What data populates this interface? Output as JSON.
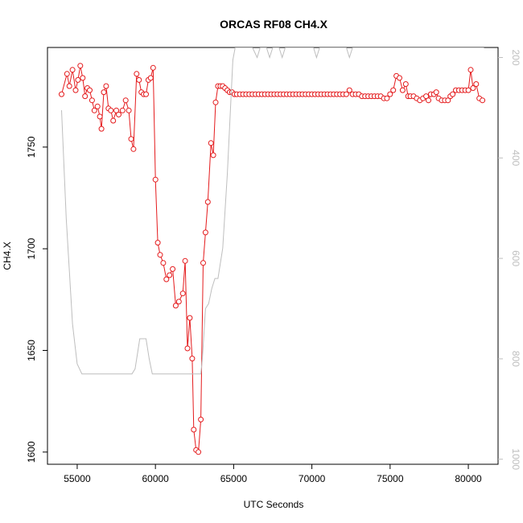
{
  "chart_data": {
    "type": "line",
    "title": "ORCAS RF08 CH4.X",
    "xlabel": "UTC Seconds",
    "ylabel": "CH4.X",
    "xlim": [
      53100,
      81900
    ],
    "ylim": [
      1594,
      1799
    ],
    "y2lim": [
      1010,
      180
    ],
    "x_ticks": [
      55000,
      60000,
      65000,
      70000,
      75000,
      80000
    ],
    "x_tick_labels": [
      "55000",
      "60000",
      "65000",
      "70000",
      "75000",
      "80000"
    ],
    "y_ticks": [
      1600,
      1650,
      1700,
      1750
    ],
    "y_tick_labels": [
      "1600",
      "1650",
      "1700",
      "1750"
    ],
    "y2_ticks": [
      200,
      400,
      600,
      800,
      1000
    ],
    "y2_tick_labels": [
      "200",
      "400",
      "600",
      "800",
      "1000"
    ],
    "grid": false,
    "colors": {
      "primary": "#e41a1c",
      "secondary": "#bebebe",
      "axis": "#000000"
    },
    "series": [
      {
        "role": "primary",
        "style": "line-with-circle-markers",
        "x": [
          54000,
          54350,
          54500,
          54700,
          54900,
          55050,
          55200,
          55350,
          55500,
          55650,
          55800,
          55950,
          56100,
          56300,
          56450,
          56550,
          56700,
          56850,
          57000,
          57150,
          57300,
          57500,
          57650,
          57900,
          58100,
          58300,
          58450,
          58600,
          58800,
          58950,
          59100,
          59250,
          59400,
          59550,
          59700,
          59850,
          60000,
          60150,
          60300,
          60500,
          60700,
          60900,
          61100,
          61300,
          61500,
          61750,
          61900,
          62050,
          62200,
          62350,
          62450,
          62600,
          62750,
          62900,
          63050,
          63200,
          63350,
          63550,
          63700,
          63850,
          64000,
          64150,
          64300,
          64450,
          64600,
          64750,
          64900,
          65050,
          65200,
          65400,
          65600,
          65800,
          66000,
          66200,
          66400,
          66600,
          66800,
          67000,
          67200,
          67400,
          67600,
          67800,
          68000,
          68200,
          68400,
          68600,
          68800,
          69000,
          69200,
          69400,
          69600,
          69800,
          70000,
          70200,
          70400,
          70600,
          70800,
          71000,
          71200,
          71400,
          71600,
          71800,
          72000,
          72200,
          72400,
          72600,
          72800,
          73000,
          73200,
          73400,
          73600,
          73800,
          74000,
          74200,
          74400,
          74600,
          74800,
          75000,
          75200,
          75400,
          75600,
          75800,
          76000,
          76150,
          76300,
          76500,
          76700,
          76900,
          77100,
          77300,
          77450,
          77600,
          77800,
          77950,
          78100,
          78300,
          78500,
          78700,
          78850,
          79000,
          79200,
          79400,
          79600,
          79800,
          80000,
          80150,
          80300,
          80500,
          80700,
          80900
        ],
        "y": [
          1776,
          1786,
          1780,
          1788,
          1778,
          1783,
          1790,
          1784,
          1775,
          1779,
          1778,
          1773,
          1768,
          1770,
          1765,
          1759,
          1777,
          1780,
          1769,
          1768,
          1763,
          1768,
          1766,
          1768,
          1773,
          1768,
          1754,
          1749,
          1786,
          1783,
          1777,
          1776,
          1776,
          1783,
          1784,
          1789,
          1734,
          1703,
          1697,
          1693,
          1685,
          1687,
          1690,
          1672,
          1674,
          1678,
          1694,
          1651,
          1666,
          1646,
          1611,
          1601,
          1600,
          1616,
          1693,
          1708,
          1723,
          1752,
          1746,
          1772,
          1780,
          1780,
          1780,
          1779,
          1778,
          1777,
          1777,
          1776,
          1776,
          1776,
          1776,
          1776,
          1776,
          1776,
          1776,
          1776,
          1776,
          1776,
          1776,
          1776,
          1776,
          1776,
          1776,
          1776,
          1776,
          1776,
          1776,
          1776,
          1776,
          1776,
          1776,
          1776,
          1776,
          1776,
          1776,
          1776,
          1776,
          1776,
          1776,
          1776,
          1776,
          1776,
          1776,
          1776,
          1778,
          1776,
          1776,
          1776,
          1775,
          1775,
          1775,
          1775,
          1775,
          1775,
          1775,
          1774,
          1774,
          1776,
          1778,
          1785,
          1784,
          1778,
          1781,
          1775,
          1775,
          1775,
          1774,
          1773,
          1774,
          1775,
          1773,
          1776,
          1776,
          1777,
          1774,
          1773,
          1773,
          1773,
          1775,
          1776,
          1778,
          1778,
          1778,
          1778,
          1778,
          1788,
          1779,
          1781,
          1774,
          1773
        ]
      },
      {
        "role": "secondary",
        "style": "line",
        "x": [
          54000,
          54300,
          54700,
          55000,
          55300,
          55700,
          56200,
          57000,
          57800,
          58500,
          58700,
          58900,
          59000,
          59200,
          59400,
          59600,
          59800,
          60000,
          61000,
          62000,
          62700,
          62900,
          63000,
          63200,
          63400,
          63600,
          63800,
          64000,
          64300,
          64600,
          64800,
          64950,
          65100,
          65300,
          65600,
          65850,
          66000,
          66200,
          66500,
          66700,
          66900,
          67100,
          67300,
          67500,
          67700,
          67900,
          68100,
          68300,
          68600,
          68900,
          69200,
          69500,
          69800,
          70100,
          70300,
          70500,
          70700,
          71000,
          71300,
          71600,
          71900,
          72200,
          72400,
          72600,
          72800,
          73000,
          73200,
          73400,
          73600,
          73800,
          74000,
          74200,
          74400,
          74600,
          74800,
          75000,
          75200,
          75400,
          75600,
          75800,
          76000,
          76200,
          76400,
          76600,
          76800,
          77000,
          77200,
          77400,
          77600,
          77800,
          78000,
          78200,
          78300,
          78500,
          78700,
          78900,
          79100,
          79300,
          79500,
          79700,
          79900,
          80100,
          80300,
          80500,
          80800,
          81000
        ],
        "y": [
          305,
          520,
          730,
          810,
          830,
          830,
          830,
          830,
          830,
          830,
          820,
          780,
          760,
          760,
          760,
          800,
          830,
          830,
          830,
          830,
          830,
          830,
          800,
          700,
          690,
          660,
          640,
          640,
          580,
          430,
          300,
          205,
          180,
          180,
          180,
          180,
          180,
          180,
          200,
          180,
          180,
          180,
          200,
          180,
          180,
          180,
          200,
          180,
          180,
          180,
          180,
          180,
          180,
          180,
          200,
          180,
          180,
          180,
          180,
          180,
          180,
          180,
          200,
          180,
          180,
          180,
          180,
          180,
          180,
          180,
          180,
          180,
          180,
          180,
          180,
          180,
          180,
          180,
          180,
          180,
          180,
          180,
          180,
          180,
          180,
          180,
          180,
          180,
          180,
          180,
          180,
          180,
          180,
          180,
          180,
          180,
          180,
          180,
          180,
          180,
          180,
          180,
          180,
          180,
          180,
          180
        ]
      }
    ]
  }
}
